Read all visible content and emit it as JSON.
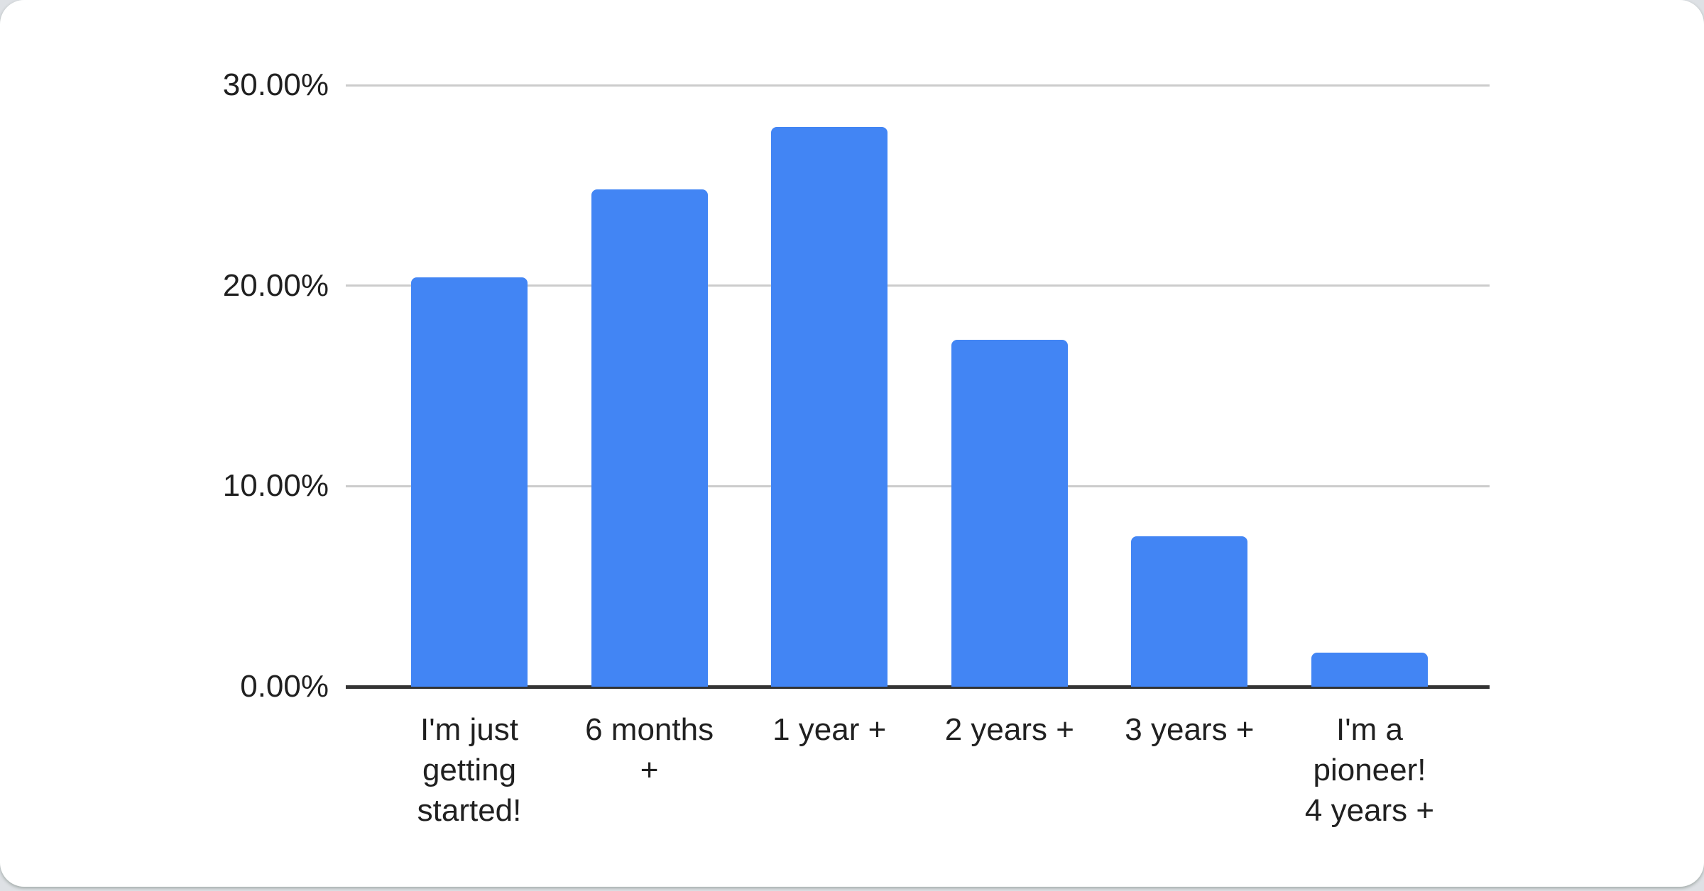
{
  "page": {
    "background_color": "#dee1e5",
    "card_background": "#ffffff"
  },
  "chart_data": {
    "type": "bar",
    "title": "",
    "xlabel": "",
    "ylabel": "",
    "legend": "none",
    "grid": true,
    "ylim": [
      0,
      30
    ],
    "categories": [
      "I'm just getting started!",
      "6 months +",
      "1 year +",
      "2 years +",
      "3 years +",
      "I'm a pioneer! 4 years +"
    ],
    "category_lines": [
      [
        "I'm just",
        "getting",
        "started!"
      ],
      [
        "6 months",
        "+"
      ],
      [
        "1 year +"
      ],
      [
        "2 years +"
      ],
      [
        "3 years +"
      ],
      [
        "I'm a",
        "pioneer!",
        "4 years +"
      ]
    ],
    "values": [
      20.4,
      24.8,
      27.9,
      17.3,
      7.5,
      1.7
    ],
    "unit": "%",
    "y_ticks": [
      {
        "value": 0,
        "label": "0.00%"
      },
      {
        "value": 10,
        "label": "10.00%"
      },
      {
        "value": 20,
        "label": "20.00%"
      },
      {
        "value": 30,
        "label": "30.00%"
      }
    ],
    "colors": {
      "bar": "#4285f4",
      "gridline": "#cccccc",
      "baseline": "#333333",
      "text": "#202020"
    }
  }
}
